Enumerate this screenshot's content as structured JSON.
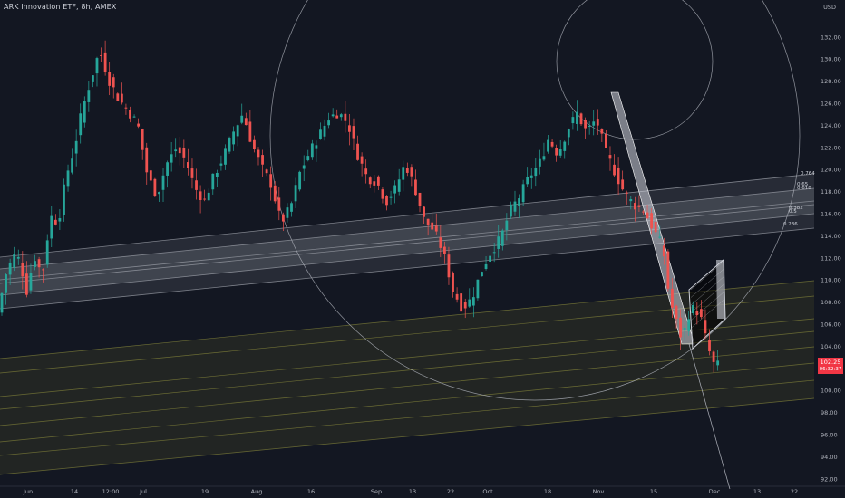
{
  "header": {
    "symbol_title": "ARK Innovation ETF, 8h, AMEX",
    "currency": "USD"
  },
  "price_tag": {
    "price": "102.25",
    "countdown": "06:32:37",
    "color": "#f23645"
  },
  "colors": {
    "background": "#131722",
    "up": "#26a69a",
    "down": "#ef5350",
    "channel_gray": "#9598a1",
    "channel_olive": "#8a8a3c",
    "circle": "#b2b5be"
  },
  "fib_labels": [
    "0.764",
    "0.65",
    "0.618",
    "0.382",
    "0.5",
    "0.236"
  ],
  "chart_data": {
    "type": "candlestick",
    "y_axis": {
      "range": [
        91,
        133.5
      ],
      "ticks": [
        92,
        94,
        96,
        98,
        100,
        102,
        104,
        106,
        108,
        110,
        112,
        114,
        116,
        118,
        120,
        122,
        124,
        126,
        128,
        130,
        132
      ]
    },
    "x_axis": {
      "ticks": [
        "Jun",
        "14",
        "12:00",
        "Jul",
        "19",
        "Aug",
        "16",
        "Sep",
        "13",
        "22",
        "Oct",
        "18",
        "Nov",
        "15",
        "Dec",
        "13",
        "22"
      ],
      "note": "8h bars, approx. June to early December"
    },
    "price_path": [
      [
        0,
        107
      ],
      [
        5,
        110.5
      ],
      [
        10,
        112.3
      ],
      [
        14,
        111.8
      ],
      [
        18,
        108.9
      ],
      [
        23,
        112.2
      ],
      [
        28,
        110.4
      ],
      [
        33,
        115.8
      ],
      [
        38,
        115.2
      ],
      [
        43,
        119.4
      ],
      [
        48,
        121.8
      ],
      [
        53,
        125.4
      ],
      [
        58,
        127.9
      ],
      [
        64,
        130.8
      ],
      [
        70,
        128.1
      ],
      [
        76,
        126.4
      ],
      [
        82,
        125.3
      ],
      [
        88,
        124.1
      ],
      [
        94,
        119.5
      ],
      [
        100,
        117.6
      ],
      [
        106,
        120.5
      ],
      [
        112,
        121.9
      ],
      [
        118,
        120.9
      ],
      [
        124,
        118.3
      ],
      [
        130,
        117.2
      ],
      [
        136,
        119.5
      ],
      [
        142,
        121.2
      ],
      [
        148,
        123.4
      ],
      [
        154,
        125.1
      ],
      [
        160,
        122.2
      ],
      [
        166,
        120.2
      ],
      [
        172,
        118.6
      ],
      [
        178,
        115.2
      ],
      [
        184,
        116.6
      ],
      [
        190,
        119.8
      ],
      [
        196,
        121.6
      ],
      [
        202,
        123.1
      ],
      [
        208,
        124.7
      ],
      [
        214,
        125.2
      ],
      [
        220,
        124.2
      ],
      [
        226,
        121.4
      ],
      [
        232,
        119.3
      ],
      [
        238,
        118.9
      ],
      [
        244,
        117.1
      ],
      [
        250,
        118.3
      ],
      [
        256,
        120.6
      ],
      [
        262,
        118.4
      ],
      [
        268,
        115.4
      ],
      [
        274,
        114.5
      ],
      [
        280,
        112.5
      ],
      [
        286,
        109.1
      ],
      [
        292,
        107.4
      ],
      [
        298,
        108.4
      ],
      [
        304,
        110.9
      ],
      [
        310,
        112.6
      ],
      [
        316,
        113.8
      ],
      [
        322,
        116.3
      ],
      [
        328,
        117.6
      ],
      [
        334,
        119.4
      ],
      [
        340,
        120.4
      ],
      [
        346,
        122.8
      ],
      [
        352,
        121.4
      ],
      [
        358,
        123.6
      ],
      [
        364,
        125.1
      ],
      [
        370,
        123.4
      ],
      [
        376,
        124.6
      ],
      [
        382,
        121.6
      ],
      [
        388,
        119.7
      ],
      [
        394,
        117.8
      ],
      [
        400,
        116.8
      ],
      [
        406,
        116.3
      ],
      [
        412,
        114.6
      ],
      [
        418,
        112.9
      ],
      [
        422,
        108.4
      ],
      [
        426,
        106.4
      ],
      [
        430,
        104.6
      ],
      [
        434,
        106.9
      ],
      [
        438,
        107.6
      ],
      [
        442,
        106.4
      ],
      [
        446,
        104.0
      ],
      [
        450,
        102.3
      ]
    ]
  }
}
